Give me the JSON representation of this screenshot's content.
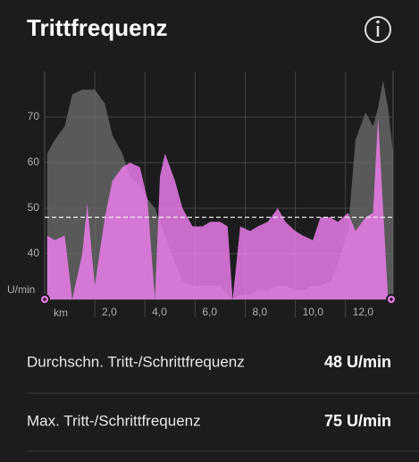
{
  "header": {
    "title": "Trittfrequenz"
  },
  "chart_data": {
    "type": "area",
    "x_label": "km",
    "y_label": "U/min",
    "x": [
      0.1,
      0.4,
      0.8,
      1.1,
      1.5,
      1.7,
      2.0,
      2.4,
      2.7,
      3.1,
      3.4,
      3.8,
      4.1,
      4.4,
      4.6,
      4.8,
      5.2,
      5.5,
      5.9,
      6.3,
      6.6,
      7.0,
      7.3,
      7.5,
      7.8,
      8.2,
      8.5,
      8.9,
      9.3,
      9.6,
      10.0,
      10.3,
      10.7,
      11.0,
      11.4,
      11.7,
      12.1,
      12.4,
      12.8,
      13.1,
      13.3,
      13.5,
      13.7,
      13.9
    ],
    "series": [
      {
        "color": "#6e6e6e",
        "values": [
          62,
          65,
          68,
          75,
          76,
          76,
          76,
          73,
          66,
          62,
          57,
          55,
          52,
          50,
          47,
          44,
          38,
          34,
          33,
          33,
          33,
          33,
          31,
          30,
          31,
          31,
          32,
          32,
          33,
          33,
          32,
          32,
          33,
          33,
          34,
          38,
          45,
          65,
          71,
          68,
          72,
          78,
          72,
          62
        ]
      },
      {
        "color": "#f07ef0",
        "values": [
          44,
          43,
          44,
          30,
          40,
          51,
          33,
          48,
          56,
          59,
          60,
          59,
          52,
          30,
          57,
          62,
          56,
          50,
          46,
          46,
          47,
          47,
          46,
          30,
          46,
          45,
          46,
          47,
          50,
          47,
          45,
          44,
          43,
          48,
          48,
          47,
          49,
          45,
          48,
          49,
          70,
          50,
          30,
          30
        ]
      }
    ],
    "average": 48,
    "xlim": [
      0,
      13.9
    ],
    "xticks": [
      {
        "value": 2,
        "label": "2,0"
      },
      {
        "value": 4,
        "label": "4,0"
      },
      {
        "value": 6,
        "label": "6,0"
      },
      {
        "value": 8,
        "label": "8,0"
      },
      {
        "value": 10,
        "label": "10,0"
      },
      {
        "value": 12,
        "label": "12,0"
      }
    ],
    "ylim": [
      30,
      80
    ],
    "yticks": [
      40,
      50,
      60,
      70
    ],
    "grid": true
  },
  "stats": [
    {
      "label": "Durchschn. Tritt-/Schrittfrequenz",
      "value": "48 U/min"
    },
    {
      "label": "Max. Tritt-/Schrittfrequenz",
      "value": "75 U/min"
    }
  ]
}
